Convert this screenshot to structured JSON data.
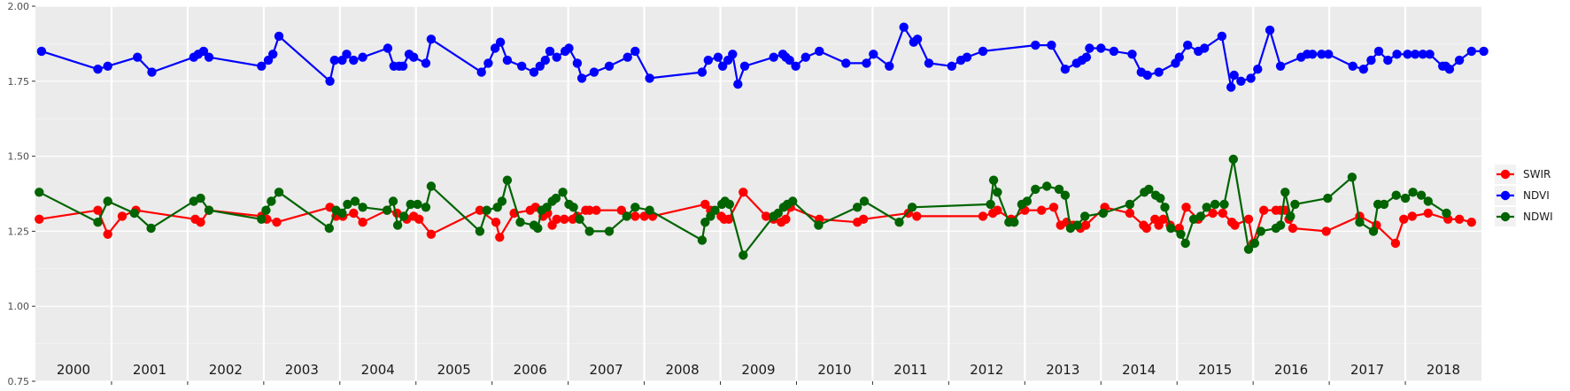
{
  "chart_data": {
    "type": "line",
    "xlabel": "",
    "ylabel": "",
    "xlim": [
      2000.0,
      2019.0
    ],
    "ylim": [
      0.75,
      2.0
    ],
    "y_ticks": [
      0.75,
      1.0,
      1.25,
      1.5,
      1.75,
      2.0
    ],
    "y_tick_labels": [
      "0.75",
      "1.00",
      "1.25",
      "1.50",
      "1.75",
      "2.00"
    ],
    "year_labels": [
      "2000",
      "2001",
      "2002",
      "2003",
      "2004",
      "2005",
      "2006",
      "2007",
      "2008",
      "2009",
      "2010",
      "2011",
      "2012",
      "2013",
      "2014",
      "2015",
      "2016",
      "2017",
      "2018"
    ],
    "grid": true,
    "background": "#EBEBEB",
    "legend_position": "right",
    "series": [
      {
        "name": "SWIR",
        "color": "#FF0000",
        "x": [
          2000.05,
          2000.82,
          2000.95,
          2001.14,
          2001.32,
          2002.1,
          2002.17,
          2002.28,
          2002.97,
          2003.04,
          2003.17,
          2003.87,
          2003.95,
          2004.04,
          2004.18,
          2004.3,
          2004.62,
          2004.75,
          2004.88,
          2004.97,
          2005.04,
          2005.2,
          2005.84,
          2006.05,
          2006.1,
          2006.29,
          2006.5,
          2006.57,
          2006.67,
          2006.73,
          2006.79,
          2006.85,
          2006.95,
          2007.06,
          2007.12,
          2007.23,
          2007.28,
          2007.37,
          2007.7,
          2007.88,
          2008.0,
          2008.11,
          2008.8,
          2008.87,
          2009.01,
          2009.05,
          2009.11,
          2009.3,
          2009.6,
          2009.7,
          2009.8,
          2009.86,
          2009.92,
          2010.3,
          2010.8,
          2010.88,
          2011.47,
          2011.58,
          2012.45,
          2012.58,
          2012.64,
          2012.82,
          2013.0,
          2013.22,
          2013.38,
          2013.47,
          2013.55,
          2013.64,
          2013.73,
          2013.8,
          2014.05,
          2014.38,
          2014.56,
          2014.6,
          2014.71,
          2014.76,
          2014.82,
          2014.91,
          2015.03,
          2015.12,
          2015.28,
          2015.47,
          2015.6,
          2015.72,
          2015.76,
          2015.94,
          2016.0,
          2016.14,
          2016.3,
          2016.36,
          2016.42,
          2016.47,
          2016.52,
          2016.96,
          2017.4,
          2017.62,
          2017.87,
          2017.98,
          2018.09,
          2018.3,
          2018.56,
          2018.71,
          2018.87
        ],
        "values": [
          1.29,
          1.32,
          1.24,
          1.3,
          1.32,
          1.29,
          1.28,
          1.32,
          1.3,
          1.29,
          1.28,
          1.33,
          1.3,
          1.3,
          1.31,
          1.28,
          1.32,
          1.31,
          1.29,
          1.3,
          1.29,
          1.24,
          1.32,
          1.28,
          1.23,
          1.31,
          1.32,
          1.33,
          1.3,
          1.31,
          1.27,
          1.29,
          1.29,
          1.29,
          1.3,
          1.32,
          1.32,
          1.32,
          1.32,
          1.3,
          1.3,
          1.3,
          1.34,
          1.32,
          1.3,
          1.29,
          1.29,
          1.38,
          1.3,
          1.29,
          1.28,
          1.29,
          1.33,
          1.29,
          1.28,
          1.29,
          1.31,
          1.3,
          1.3,
          1.31,
          1.32,
          1.29,
          1.32,
          1.32,
          1.33,
          1.27,
          1.28,
          1.27,
          1.26,
          1.27,
          1.33,
          1.31,
          1.27,
          1.26,
          1.29,
          1.27,
          1.29,
          1.27,
          1.26,
          1.33,
          1.29,
          1.31,
          1.31,
          1.28,
          1.27,
          1.29,
          1.21,
          1.32,
          1.32,
          1.32,
          1.32,
          1.29,
          1.26,
          1.25,
          1.3,
          1.27,
          1.21,
          1.29,
          1.3,
          1.31,
          1.29,
          1.29,
          1.28
        ]
      },
      {
        "name": "NDVI",
        "color": "#0000FF",
        "x": [
          2000.08,
          2000.82,
          2000.95,
          2001.34,
          2001.53,
          2002.08,
          2002.14,
          2002.21,
          2002.28,
          2002.97,
          2003.06,
          2003.12,
          2003.2,
          2003.87,
          2003.93,
          2004.03,
          2004.09,
          2004.18,
          2004.3,
          2004.63,
          2004.71,
          2004.78,
          2004.83,
          2004.91,
          2004.97,
          2005.13,
          2005.2,
          2005.86,
          2005.95,
          2006.04,
          2006.11,
          2006.2,
          2006.39,
          2006.55,
          2006.63,
          2006.7,
          2006.76,
          2006.85,
          2006.96,
          2007.01,
          2007.12,
          2007.18,
          2007.34,
          2007.54,
          2007.78,
          2007.88,
          2008.07,
          2008.76,
          2008.84,
          2008.97,
          2009.03,
          2009.1,
          2009.16,
          2009.23,
          2009.32,
          2009.7,
          2009.82,
          2009.86,
          2009.91,
          2009.99,
          2010.12,
          2010.3,
          2010.65,
          2010.92,
          2011.01,
          2011.22,
          2011.41,
          2011.54,
          2011.59,
          2011.74,
          2012.04,
          2012.16,
          2012.24,
          2012.45,
          2013.14,
          2013.35,
          2013.53,
          2013.68,
          2013.75,
          2013.81,
          2013.85,
          2014.0,
          2014.17,
          2014.41,
          2014.53,
          2014.61,
          2014.76,
          2014.98,
          2015.03,
          2015.14,
          2015.28,
          2015.36,
          2015.59,
          2015.71,
          2015.75,
          2015.84,
          2015.97,
          2016.06,
          2016.22,
          2016.36,
          2016.63,
          2016.71,
          2016.78,
          2016.9,
          2016.99,
          2017.31,
          2017.45,
          2017.55,
          2017.65,
          2017.77,
          2017.89,
          2018.03,
          2018.13,
          2018.23,
          2018.32,
          2018.49,
          2018.53,
          2018.58,
          2018.71,
          2018.87,
          2019.03
        ],
        "values": [
          1.85,
          1.79,
          1.8,
          1.83,
          1.78,
          1.83,
          1.84,
          1.85,
          1.83,
          1.8,
          1.82,
          1.84,
          1.9,
          1.75,
          1.82,
          1.82,
          1.84,
          1.82,
          1.83,
          1.86,
          1.8,
          1.8,
          1.8,
          1.84,
          1.83,
          1.81,
          1.89,
          1.78,
          1.81,
          1.86,
          1.88,
          1.82,
          1.8,
          1.78,
          1.8,
          1.82,
          1.85,
          1.83,
          1.85,
          1.86,
          1.81,
          1.76,
          1.78,
          1.8,
          1.83,
          1.85,
          1.76,
          1.78,
          1.82,
          1.83,
          1.8,
          1.82,
          1.84,
          1.74,
          1.8,
          1.83,
          1.84,
          1.83,
          1.82,
          1.8,
          1.83,
          1.85,
          1.81,
          1.81,
          1.84,
          1.8,
          1.93,
          1.88,
          1.89,
          1.81,
          1.8,
          1.82,
          1.83,
          1.85,
          1.87,
          1.87,
          1.79,
          1.81,
          1.82,
          1.83,
          1.86,
          1.86,
          1.85,
          1.84,
          1.78,
          1.77,
          1.78,
          1.81,
          1.83,
          1.87,
          1.85,
          1.86,
          1.9,
          1.73,
          1.77,
          1.75,
          1.76,
          1.79,
          1.92,
          1.8,
          1.83,
          1.84,
          1.84,
          1.84,
          1.84,
          1.8,
          1.79,
          1.82,
          1.85,
          1.82,
          1.84,
          1.84,
          1.84,
          1.84,
          1.84,
          1.8,
          1.8,
          1.79,
          1.82,
          1.85,
          1.85
        ]
      },
      {
        "name": "NDWI",
        "color": "#006400",
        "x": [
          2000.05,
          2000.82,
          2000.95,
          2001.3,
          2001.52,
          2002.08,
          2002.17,
          2002.28,
          2002.97,
          2003.03,
          2003.1,
          2003.2,
          2003.86,
          2003.95,
          2004.03,
          2004.1,
          2004.2,
          2004.3,
          2004.62,
          2004.7,
          2004.76,
          2004.84,
          2004.93,
          2005.02,
          2005.13,
          2005.2,
          2005.84,
          2005.93,
          2006.07,
          2006.13,
          2006.2,
          2006.37,
          2006.55,
          2006.6,
          2006.65,
          2006.72,
          2006.79,
          2006.84,
          2006.93,
          2007.01,
          2007.07,
          2007.15,
          2007.28,
          2007.54,
          2007.77,
          2007.88,
          2008.07,
          2008.76,
          2008.8,
          2008.87,
          2008.93,
          2009.02,
          2009.06,
          2009.12,
          2009.3,
          2009.7,
          2009.76,
          2009.83,
          2009.88,
          2009.95,
          2010.29,
          2010.8,
          2010.89,
          2011.35,
          2011.52,
          2012.55,
          2012.59,
          2012.64,
          2012.79,
          2012.86,
          2012.96,
          2013.03,
          2013.14,
          2013.29,
          2013.45,
          2013.53,
          2013.6,
          2013.69,
          2013.79,
          2014.03,
          2014.38,
          2014.57,
          2014.63,
          2014.72,
          2014.78,
          2014.84,
          2014.92,
          2015.05,
          2015.11,
          2015.22,
          2015.31,
          2015.39,
          2015.5,
          2015.62,
          2015.74,
          2015.94,
          2016.02,
          2016.1,
          2016.3,
          2016.36,
          2016.42,
          2016.49,
          2016.55,
          2016.98,
          2017.3,
          2017.4,
          2017.58,
          2017.64,
          2017.72,
          2017.88,
          2018.0,
          2018.1,
          2018.21,
          2018.3,
          2018.54
        ],
        "values": [
          1.38,
          1.28,
          1.35,
          1.31,
          1.26,
          1.35,
          1.36,
          1.32,
          1.29,
          1.32,
          1.35,
          1.38,
          1.26,
          1.32,
          1.31,
          1.34,
          1.35,
          1.33,
          1.32,
          1.35,
          1.27,
          1.3,
          1.34,
          1.34,
          1.33,
          1.4,
          1.25,
          1.32,
          1.33,
          1.35,
          1.42,
          1.28,
          1.27,
          1.26,
          1.32,
          1.33,
          1.35,
          1.36,
          1.38,
          1.34,
          1.33,
          1.29,
          1.25,
          1.25,
          1.3,
          1.33,
          1.32,
          1.22,
          1.28,
          1.3,
          1.32,
          1.34,
          1.35,
          1.34,
          1.17,
          1.3,
          1.31,
          1.33,
          1.34,
          1.35,
          1.27,
          1.33,
          1.35,
          1.28,
          1.33,
          1.34,
          1.42,
          1.38,
          1.28,
          1.28,
          1.34,
          1.35,
          1.39,
          1.4,
          1.39,
          1.37,
          1.26,
          1.27,
          1.3,
          1.31,
          1.34,
          1.38,
          1.39,
          1.37,
          1.36,
          1.33,
          1.26,
          1.24,
          1.21,
          1.29,
          1.3,
          1.33,
          1.34,
          1.34,
          1.49,
          1.19,
          1.21,
          1.25,
          1.26,
          1.27,
          1.38,
          1.3,
          1.34,
          1.36,
          1.43,
          1.28,
          1.25,
          1.34,
          1.34,
          1.37,
          1.36,
          1.38,
          1.37,
          1.35,
          1.31
        ]
      }
    ]
  }
}
